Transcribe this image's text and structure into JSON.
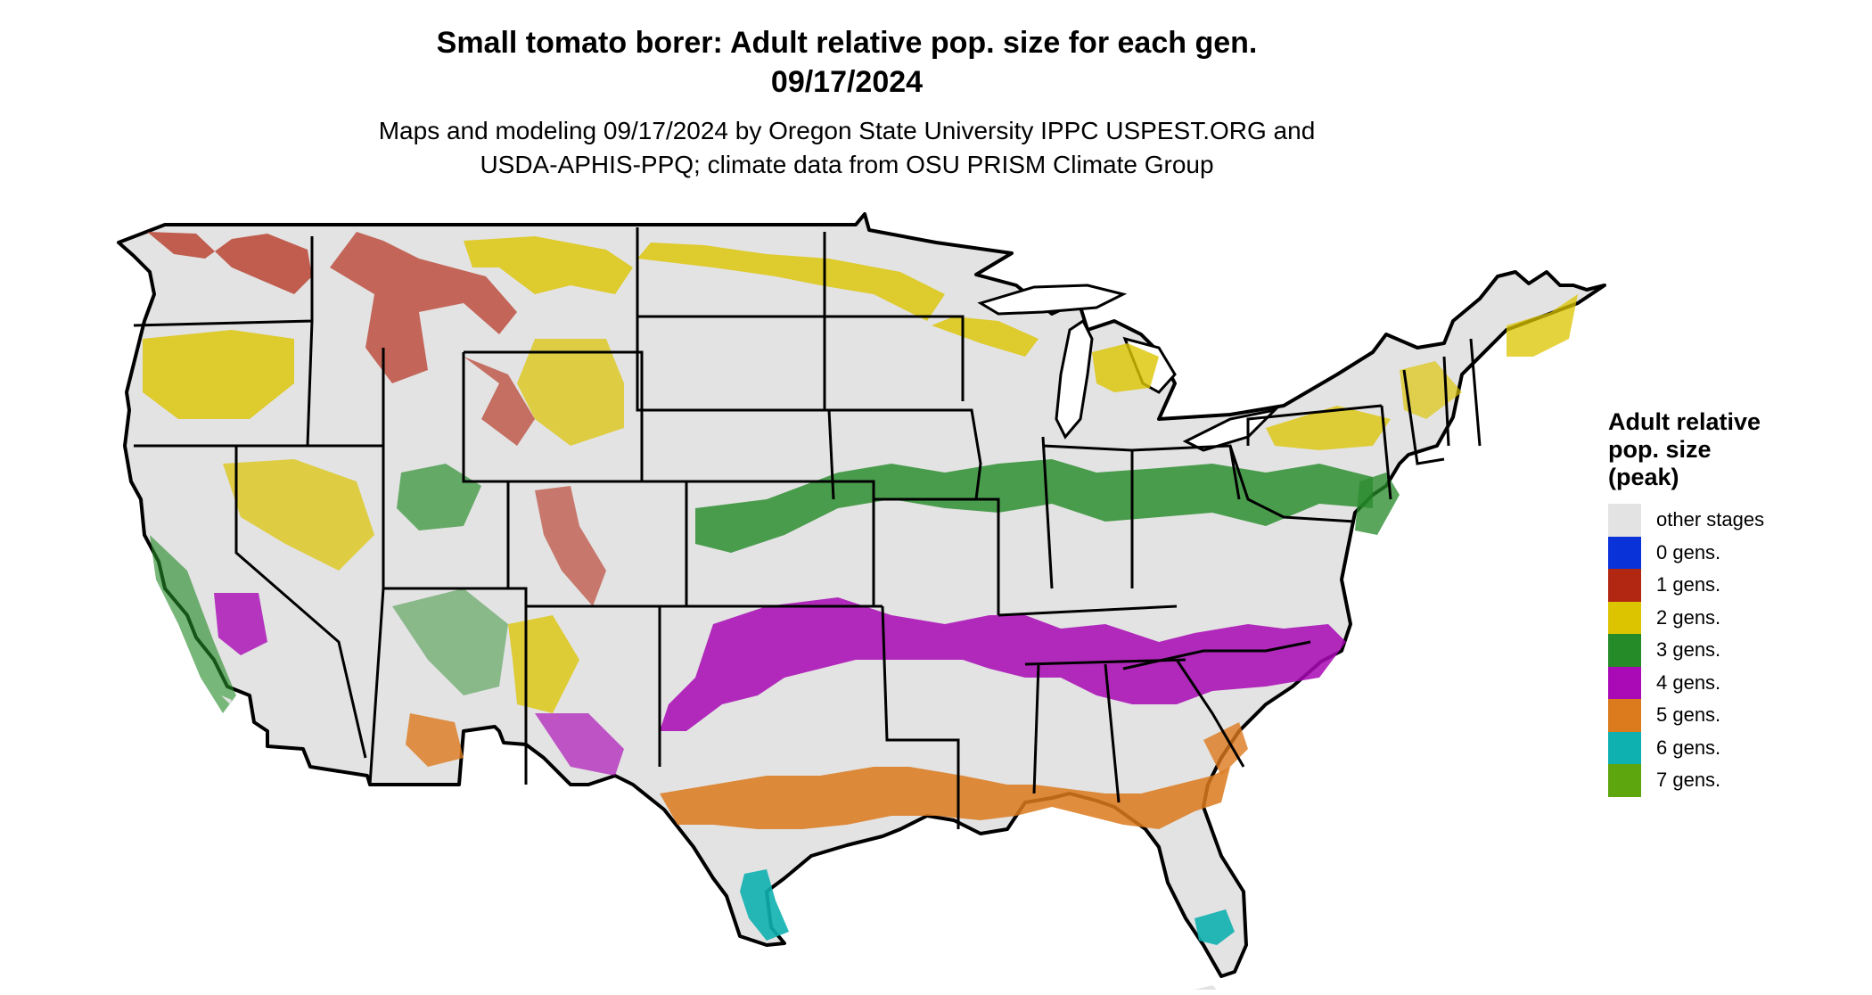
{
  "header": {
    "title_line1": "Small tomato borer: Adult relative pop. size for each gen.",
    "title_line2": "09/17/2024",
    "subtitle_line1": "Maps and modeling 09/17/2024 by Oregon State University IPPC USPEST.ORG and",
    "subtitle_line2": "USDA-APHIS-PPQ; climate data from OSU PRISM Climate Group"
  },
  "legend": {
    "title_line1": "Adult relative",
    "title_line2": "pop. size",
    "title_line3": "(peak)",
    "items": [
      {
        "label": "other stages",
        "color": "#e3e3e3"
      },
      {
        "label": "0 gens.",
        "color": "#0a32d9"
      },
      {
        "label": "1 gens.",
        "color": "#b22712"
      },
      {
        "label": "2 gens.",
        "color": "#dcc400"
      },
      {
        "label": "3 gens.",
        "color": "#258a28"
      },
      {
        "label": "4 gens.",
        "color": "#a90ab5"
      },
      {
        "label": "5 gens.",
        "color": "#dc7a1e"
      },
      {
        "label": "6 gens.",
        "color": "#0fb0b0"
      },
      {
        "label": "7 gens.",
        "color": "#5ea60e"
      }
    ]
  },
  "map": {
    "region": "contiguous United States",
    "base_color": "#e3e3e3",
    "border_color": "#000000"
  }
}
